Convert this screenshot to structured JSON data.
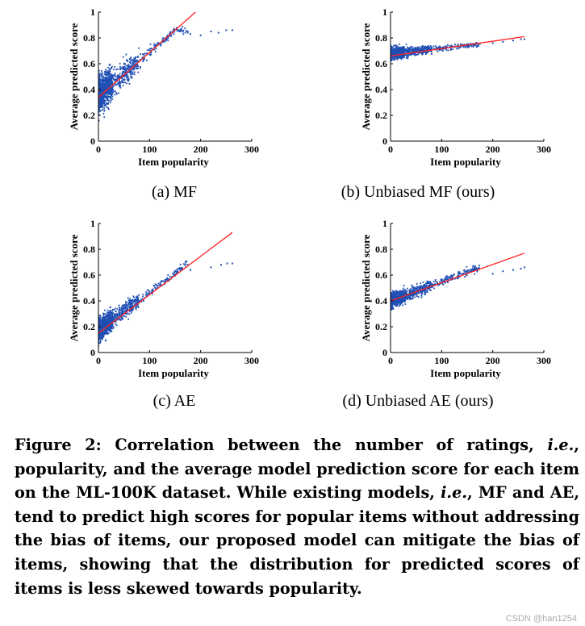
{
  "figure": {
    "panels": [
      {
        "id": "a",
        "caption": "(a) MF"
      },
      {
        "id": "b",
        "caption": "(b) Unbiased MF (ours)"
      },
      {
        "id": "c",
        "caption": "(c) AE"
      },
      {
        "id": "d",
        "caption": "(d) Unbiased AE (ours)"
      }
    ],
    "colors": {
      "scatter": "#1f4fb4",
      "fit": "#ff2020",
      "axis": "#000000"
    }
  },
  "chart_data": [
    {
      "type": "scatter",
      "title": "(a) MF",
      "xlabel": "Item popularity",
      "ylabel": "Average predicted score",
      "xlim": [
        0,
        300
      ],
      "ylim": [
        0,
        1
      ],
      "xticks": [
        0,
        100,
        200,
        300
      ],
      "yticks": [
        0,
        0.2,
        0.4,
        0.6,
        0.8,
        1
      ],
      "ytick_labels": [
        "0",
        "0.2",
        "0.4",
        "0.6",
        "0.8",
        "1"
      ],
      "cloud": {
        "base": 0.36,
        "slope": 0.0033,
        "cap": 0.86,
        "spread_low": 0.16,
        "spread_high": 0.03,
        "min_y": 0.02
      },
      "fit_line": {
        "x": [
          0,
          190
        ],
        "y": [
          0.34,
          1.0
        ]
      },
      "outliers": {
        "x": [
          180,
          200,
          220,
          235,
          250,
          262
        ],
        "y": [
          0.83,
          0.82,
          0.85,
          0.84,
          0.86,
          0.86
        ]
      }
    },
    {
      "type": "scatter",
      "title": "(b) Unbiased MF (ours)",
      "xlabel": "Item popularity",
      "ylabel": "Average predicted score",
      "xlim": [
        0,
        300
      ],
      "ylim": [
        0,
        1
      ],
      "xticks": [
        0,
        100,
        200,
        300
      ],
      "yticks": [
        0,
        0.2,
        0.4,
        0.6,
        0.8,
        1
      ],
      "ytick_labels": [
        "0",
        "0.2",
        "0.4",
        "0.6",
        "0.8",
        "1"
      ],
      "cloud": {
        "base": 0.68,
        "slope": 0.0004,
        "cap": 0.78,
        "spread_low": 0.05,
        "spread_high": 0.02,
        "min_y": 0.55
      },
      "fit_line": {
        "x": [
          0,
          262
        ],
        "y": [
          0.66,
          0.81
        ]
      },
      "outliers": {
        "x": [
          200,
          220,
          240,
          255,
          262
        ],
        "y": [
          0.76,
          0.77,
          0.78,
          0.79,
          0.79
        ]
      }
    },
    {
      "type": "scatter",
      "title": "(c) AE",
      "xlabel": "Item popularity",
      "ylabel": "Average predicted score",
      "xlim": [
        0,
        300
      ],
      "ylim": [
        0,
        1
      ],
      "xticks": [
        0,
        100,
        200,
        300
      ],
      "yticks": [
        0,
        0.2,
        0.4,
        0.6,
        0.8,
        1
      ],
      "ytick_labels": [
        "0",
        "0.2",
        "0.4",
        "0.6",
        "0.8",
        "1"
      ],
      "cloud": {
        "base": 0.17,
        "slope": 0.003,
        "cap": 0.69,
        "spread_low": 0.1,
        "spread_high": 0.03,
        "min_y": 0.0
      },
      "fit_line": {
        "x": [
          0,
          262
        ],
        "y": [
          0.15,
          0.93
        ]
      },
      "outliers": {
        "x": [
          180,
          220,
          240,
          252,
          262
        ],
        "y": [
          0.64,
          0.66,
          0.68,
          0.69,
          0.69
        ]
      }
    },
    {
      "type": "scatter",
      "title": "(d) Unbiased AE (ours)",
      "xlabel": "Item popularity",
      "ylabel": "Average predicted score",
      "xlim": [
        0,
        300
      ],
      "ylim": [
        0,
        1
      ],
      "xticks": [
        0,
        100,
        200,
        300
      ],
      "yticks": [
        0,
        0.2,
        0.4,
        0.6,
        0.8,
        1
      ],
      "ytick_labels": [
        "0",
        "0.2",
        "0.4",
        "0.6",
        "0.8",
        "1"
      ],
      "cloud": {
        "base": 0.4,
        "slope": 0.0015,
        "cap": 0.66,
        "spread_low": 0.06,
        "spread_high": 0.03,
        "min_y": 0.2
      },
      "fit_line": {
        "x": [
          0,
          262
        ],
        "y": [
          0.4,
          0.77
        ]
      },
      "outliers": {
        "x": [
          200,
          220,
          240,
          255,
          262
        ],
        "y": [
          0.61,
          0.63,
          0.64,
          0.65,
          0.66
        ]
      }
    }
  ],
  "caption": {
    "label": "Figure 2:",
    "t1": " Correlation between the number of ratings, ",
    "ie1": "i.e.",
    "t2": ", popularity, and the average model prediction score for each item on the ML-100K dataset. While existing models, ",
    "ie2": "i.e.",
    "t3": ", MF and AE, tend to predict high scores for popular items without addressing the bias of items, our proposed model can mitigate the bias of items, showing that the distribution for predicted scores of items is less skewed towards popularity."
  },
  "watermark": "CSDN @han1254"
}
